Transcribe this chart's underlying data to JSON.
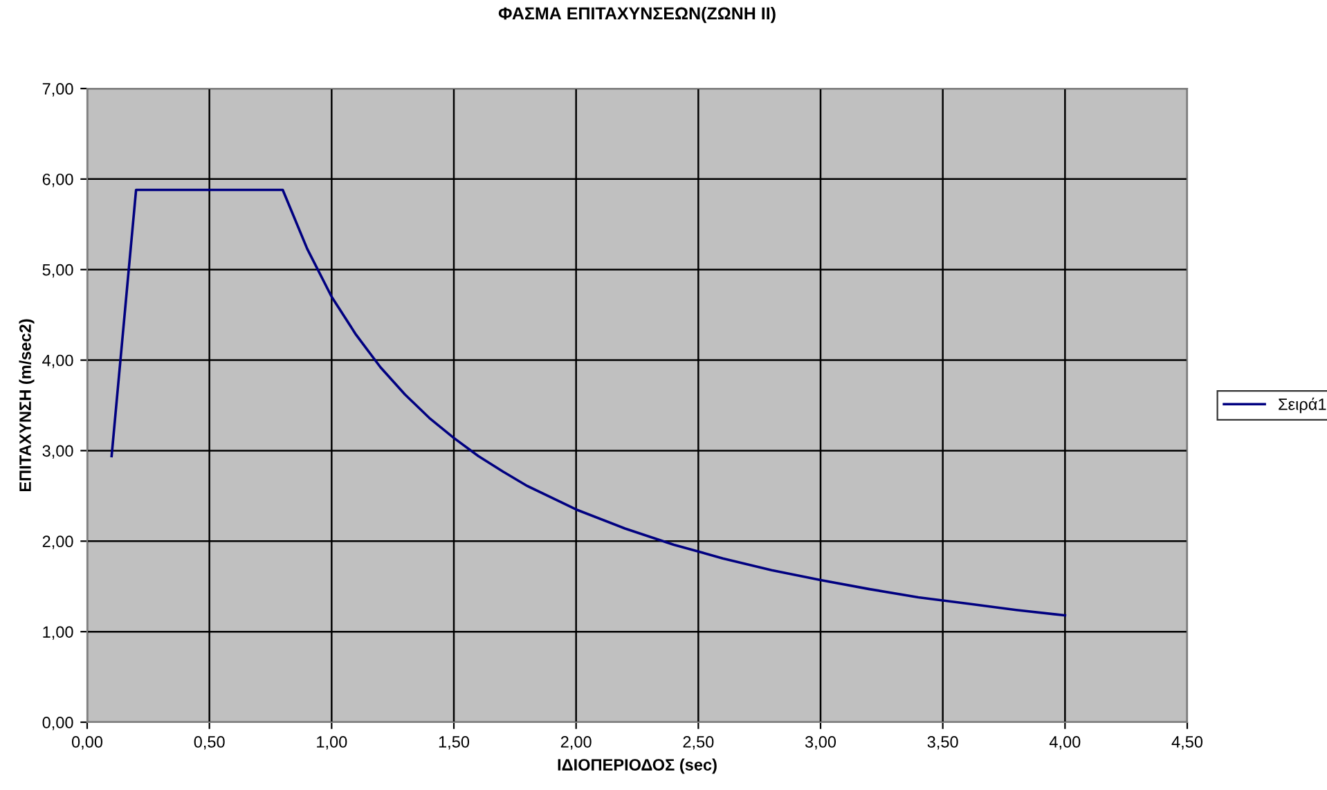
{
  "chart_data": {
    "type": "line",
    "title": "ΦΑΣΜΑ ΕΠΙΤΑΧΥΝΣΕΩΝ(ΖΩΝΗ ΙΙ)",
    "xlabel": "ΙΔΙΟΠΕΡΙΟΔΟΣ (sec)",
    "ylabel": "ΕΠΙΤΑΧΥΝΣΗ (m/sec2)",
    "x": [
      0.1,
      0.2,
      0.3,
      0.4,
      0.5,
      0.6,
      0.7,
      0.8,
      0.9,
      1.0,
      1.1,
      1.2,
      1.3,
      1.4,
      1.5,
      1.6,
      1.7,
      1.8,
      1.9,
      2.0,
      2.2,
      2.4,
      2.6,
      2.8,
      3.0,
      3.2,
      3.4,
      3.6,
      3.8,
      4.0
    ],
    "series": [
      {
        "name": "Σειρά1",
        "color": "#000080",
        "values": [
          2.94,
          5.88,
          5.88,
          5.88,
          5.88,
          5.88,
          5.88,
          5.88,
          5.23,
          4.7,
          4.28,
          3.92,
          3.62,
          3.36,
          3.14,
          2.94,
          2.77,
          2.61,
          2.48,
          2.35,
          2.14,
          1.96,
          1.81,
          1.68,
          1.57,
          1.47,
          1.38,
          1.31,
          1.24,
          1.18
        ]
      }
    ],
    "xlim": [
      0,
      4.5
    ],
    "ylim": [
      0,
      7
    ],
    "xticks": [
      {
        "value": 0,
        "label": "0,00"
      },
      {
        "value": 0.5,
        "label": "0,50"
      },
      {
        "value": 1,
        "label": "1,00"
      },
      {
        "value": 1.5,
        "label": "1,50"
      },
      {
        "value": 2,
        "label": "2,00"
      },
      {
        "value": 2.5,
        "label": "2,50"
      },
      {
        "value": 3,
        "label": "3,00"
      },
      {
        "value": 3.5,
        "label": "3,50"
      },
      {
        "value": 4,
        "label": "4,00"
      },
      {
        "value": 4.5,
        "label": "4,50"
      }
    ],
    "yticks": [
      {
        "value": 0,
        "label": "0,00"
      },
      {
        "value": 1,
        "label": "1,00"
      },
      {
        "value": 2,
        "label": "2,00"
      },
      {
        "value": 3,
        "label": "3,00"
      },
      {
        "value": 4,
        "label": "4,00"
      },
      {
        "value": 5,
        "label": "5,00"
      },
      {
        "value": 6,
        "label": "6,00"
      },
      {
        "value": 7,
        "label": "7,00"
      }
    ],
    "grid": true,
    "legend": "right",
    "marker": "none",
    "line_style": "solid"
  }
}
